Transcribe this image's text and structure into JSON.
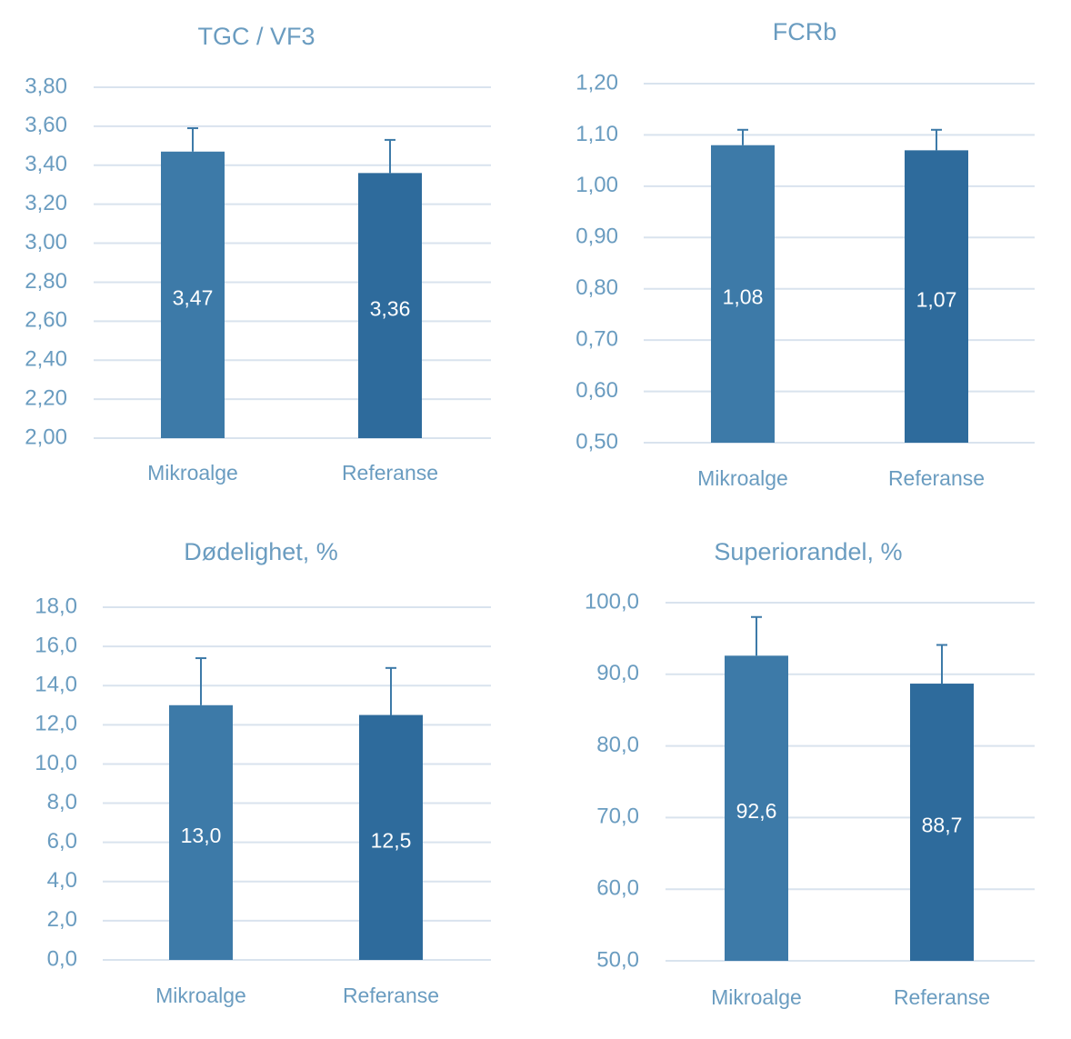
{
  "chart_data": [
    {
      "type": "bar",
      "title": "TGC / VF3",
      "categories": [
        "Mikroalge",
        "Referanse"
      ],
      "values": [
        3.47,
        3.36
      ],
      "value_labels": [
        "3,47",
        "3,36"
      ],
      "errors": [
        0.12,
        0.17
      ],
      "colors": [
        "#3d7aa8",
        "#2e6b9c"
      ],
      "ylim": [
        2.0,
        3.8
      ],
      "yticks": [
        {
          "value": 2.0,
          "label": "2,00"
        },
        {
          "value": 2.2,
          "label": "2,20"
        },
        {
          "value": 2.4,
          "label": "2,40"
        },
        {
          "value": 2.6,
          "label": "2,60"
        },
        {
          "value": 2.8,
          "label": "2,80"
        },
        {
          "value": 3.0,
          "label": "3,00"
        },
        {
          "value": 3.2,
          "label": "3,20"
        },
        {
          "value": 3.4,
          "label": "3,40"
        },
        {
          "value": 3.6,
          "label": "3,60"
        },
        {
          "value": 3.8,
          "label": "3,80"
        }
      ],
      "grid": true
    },
    {
      "type": "bar",
      "title": "FCRb",
      "categories": [
        "Mikroalge",
        "Referanse"
      ],
      "values": [
        1.08,
        1.07
      ],
      "value_labels": [
        "1,08",
        "1,07"
      ],
      "errors": [
        0.03,
        0.04
      ],
      "colors": [
        "#3d7aa8",
        "#2e6b9c"
      ],
      "ylim": [
        0.5,
        1.2
      ],
      "yticks": [
        {
          "value": 0.5,
          "label": "0,50"
        },
        {
          "value": 0.6,
          "label": "0,60"
        },
        {
          "value": 0.7,
          "label": "0,70"
        },
        {
          "value": 0.8,
          "label": "0,80"
        },
        {
          "value": 0.9,
          "label": "0,90"
        },
        {
          "value": 1.0,
          "label": "1,00"
        },
        {
          "value": 1.1,
          "label": "1,10"
        },
        {
          "value": 1.2,
          "label": "1,20"
        }
      ],
      "grid": true
    },
    {
      "type": "bar",
      "title": "Dødelighet, %",
      "categories": [
        "Mikroalge",
        "Referanse"
      ],
      "values": [
        13.0,
        12.5
      ],
      "value_labels": [
        "13,0",
        "12,5"
      ],
      "errors": [
        2.4,
        2.4
      ],
      "colors": [
        "#3d7aa8",
        "#2e6b9c"
      ],
      "ylim": [
        0,
        18
      ],
      "yticks": [
        {
          "value": 0,
          "label": "0,0"
        },
        {
          "value": 2,
          "label": "2,0"
        },
        {
          "value": 4,
          "label": "4,0"
        },
        {
          "value": 6,
          "label": "6,0"
        },
        {
          "value": 8,
          "label": "8,0"
        },
        {
          "value": 10,
          "label": "10,0"
        },
        {
          "value": 12,
          "label": "12,0"
        },
        {
          "value": 14,
          "label": "14,0"
        },
        {
          "value": 16,
          "label": "16,0"
        },
        {
          "value": 18,
          "label": "18,0"
        }
      ],
      "grid": true
    },
    {
      "type": "bar",
      "title": "Superiorandel, %",
      "categories": [
        "Mikroalge",
        "Referanse"
      ],
      "values": [
        92.6,
        88.7
      ],
      "value_labels": [
        "92,6",
        "88,7"
      ],
      "errors": [
        5.4,
        5.4
      ],
      "colors": [
        "#3d7aa8",
        "#2e6b9c"
      ],
      "ylim": [
        50,
        100
      ],
      "yticks": [
        {
          "value": 50,
          "label": "50,0"
        },
        {
          "value": 60,
          "label": "60,0"
        },
        {
          "value": 70,
          "label": "70,0"
        },
        {
          "value": 80,
          "label": "80,0"
        },
        {
          "value": 90,
          "label": "90,0"
        },
        {
          "value": 100,
          "label": "100,0"
        }
      ],
      "grid": true
    }
  ]
}
